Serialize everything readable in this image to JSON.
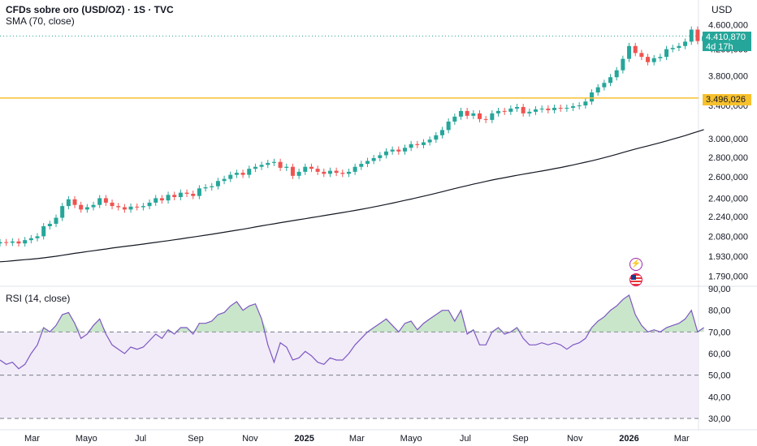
{
  "header": {
    "title": "CFDs sobre oro (USD/OZ) · 1S · TVC",
    "sma_label": "SMA (70, close)",
    "rsi_label": "RSI (14, close)",
    "currency": "USD"
  },
  "tags": {
    "last_price": "4.410,870",
    "countdown": "4d 17h",
    "level_price": "3.496,026"
  },
  "colors": {
    "up": "#26a69a",
    "down": "#ef5350",
    "sma": "#131722",
    "rsi_line": "#7e57c2",
    "rsi_band": "#ede7f6",
    "level_line": "#f7c12d"
  },
  "chart_data": [
    {
      "type": "candlestick",
      "title": "CFDs sobre oro (USD/OZ) · 1S · TVC",
      "ylabel": "USD",
      "yscale": "log",
      "ylim": [
        1740,
        4900
      ],
      "price_ticks": [
        "4.600,000",
        "4.200,000",
        "3.800,000",
        "3.400,000",
        "3.000,000",
        "2.800,000",
        "2.600,000",
        "2.400,000",
        "2.240,000",
        "2.080,000",
        "1.930,000",
        "1.790,000"
      ],
      "price_tick_values": [
        4600,
        4200,
        3800,
        3400,
        3000,
        2800,
        2600,
        2400,
        2240,
        2080,
        1930,
        1790
      ],
      "x_ticks": [
        "Mar",
        "Mayo",
        "Jul",
        "Sep",
        "Nov",
        "2025",
        "Mar",
        "Mayo",
        "Jul",
        "Sep",
        "Nov",
        "2026",
        "Mar"
      ],
      "x_tick_dates": [
        "2024-03-01",
        "2024-05-01",
        "2024-07-01",
        "2024-09-01",
        "2024-11-01",
        "2025-01-01",
        "2025-03-01",
        "2025-05-01",
        "2025-07-01",
        "2025-09-01",
        "2025-11-01",
        "2026-01-01",
        "2026-03-01"
      ],
      "x_range": [
        "2024-01-25",
        "2026-03-20"
      ],
      "closes": [
        2035,
        2030,
        2040,
        2025,
        2050,
        2065,
        2080,
        2160,
        2180,
        2230,
        2330,
        2390,
        2340,
        2300,
        2320,
        2340,
        2400,
        2360,
        2330,
        2320,
        2300,
        2325,
        2320,
        2330,
        2360,
        2400,
        2380,
        2430,
        2410,
        2450,
        2440,
        2420,
        2490,
        2500,
        2510,
        2560,
        2580,
        2620,
        2640,
        2620,
        2680,
        2700,
        2720,
        2740,
        2750,
        2690,
        2700,
        2610,
        2650,
        2700,
        2680,
        2650,
        2630,
        2660,
        2640,
        2630,
        2650,
        2700,
        2730,
        2760,
        2790,
        2820,
        2860,
        2880,
        2860,
        2900,
        2940,
        2930,
        2960,
        2990,
        3040,
        3100,
        3200,
        3260,
        3330,
        3270,
        3300,
        3230,
        3220,
        3300,
        3330,
        3320,
        3360,
        3380,
        3300,
        3320,
        3350,
        3360,
        3340,
        3370,
        3360,
        3370,
        3390,
        3400,
        3450,
        3570,
        3640,
        3700,
        3780,
        3880,
        4050,
        4250,
        4140,
        4080,
        4000,
        4060,
        4080,
        4200,
        4220,
        4250,
        4320,
        4520,
        4330,
        4410
      ],
      "series_note": "Weekly candles; open of each candle = previous close",
      "sma_series": {
        "name": "SMA (70, close)",
        "values": [
          1890,
          1893,
          1897,
          1901,
          1905,
          1909,
          1913,
          1918,
          1924,
          1930,
          1937,
          1944,
          1951,
          1957,
          1964,
          1970,
          1977,
          1983,
          1990,
          1996,
          2002,
          2008,
          2014,
          2020,
          2027,
          2033,
          2040,
          2046,
          2053,
          2060,
          2067,
          2074,
          2081,
          2089,
          2096,
          2104,
          2112,
          2120,
          2128,
          2136,
          2145,
          2154,
          2163,
          2172,
          2180,
          2189,
          2197,
          2206,
          2214,
          2222,
          2231,
          2239,
          2248,
          2257,
          2265,
          2274,
          2283,
          2292,
          2302,
          2312,
          2322,
          2333,
          2344,
          2356,
          2368,
          2380,
          2392,
          2405,
          2418,
          2431,
          2445,
          2459,
          2474,
          2488,
          2502,
          2516,
          2530,
          2543,
          2556,
          2569,
          2581,
          2592,
          2604,
          2615,
          2626,
          2637,
          2647,
          2658,
          2669,
          2681,
          2693,
          2706,
          2719,
          2733,
          2747,
          2762,
          2778,
          2795,
          2812,
          2830,
          2849,
          2868,
          2886,
          2904,
          2921,
          2939,
          2957,
          2976,
          2996,
          3016,
          3036,
          3059,
          3082,
          3105
        ]
      },
      "level_line": 3496.026,
      "last_price": 4410.87
    },
    {
      "type": "line",
      "title": "RSI (14, close)",
      "ylim": [
        27,
        90
      ],
      "y_ticks": [
        "90,00",
        "80,00",
        "70,00",
        "60,00",
        "50,00",
        "40,00",
        "30,00"
      ],
      "y_tick_values": [
        90,
        80,
        70,
        60,
        50,
        40,
        30
      ],
      "band": [
        30,
        70
      ],
      "middle": 50,
      "series": [
        {
          "values": [
            57,
            55,
            56,
            53,
            55,
            60,
            64,
            72,
            70,
            73,
            78,
            79,
            74,
            67,
            69,
            73,
            76,
            69,
            64,
            62,
            60,
            63,
            62,
            63,
            66,
            69,
            67,
            71,
            69,
            72,
            72,
            69,
            74,
            74,
            75,
            78,
            79,
            82,
            84,
            80,
            82,
            83,
            76,
            64,
            56,
            65,
            63,
            57,
            58,
            61,
            59,
            56,
            55,
            58,
            57,
            57,
            60,
            64,
            67,
            70,
            72,
            74,
            76,
            73,
            70,
            74,
            75,
            71,
            74,
            76,
            78,
            80,
            80,
            75,
            80,
            69,
            71,
            64,
            64,
            70,
            72,
            69,
            70,
            72,
            67,
            64,
            64,
            65,
            64,
            65,
            64,
            62,
            64,
            65,
            67,
            72,
            75,
            77,
            80,
            82,
            85,
            87,
            78,
            73,
            70,
            71,
            70,
            72,
            73,
            74,
            76,
            80,
            70,
            72
          ]
        }
      ]
    }
  ]
}
